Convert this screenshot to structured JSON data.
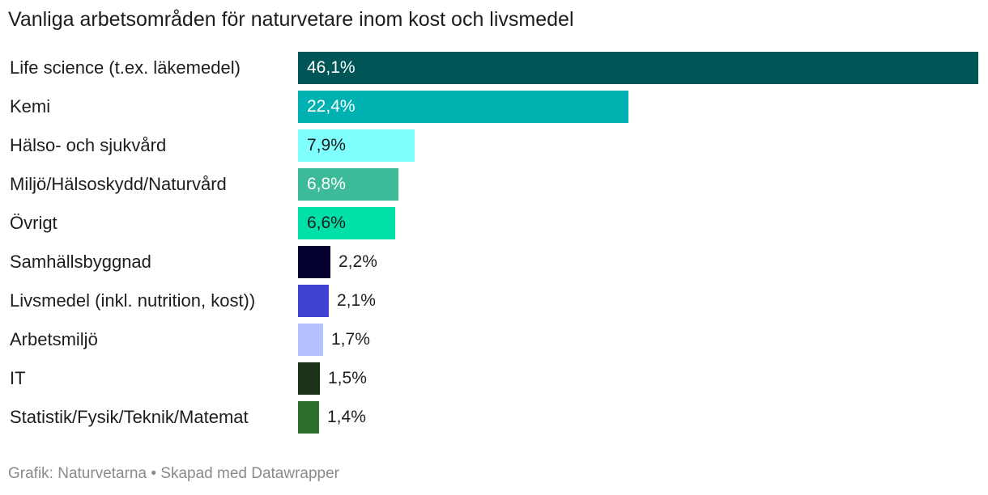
{
  "chart_data": {
    "type": "bar",
    "orientation": "horizontal",
    "title": "Vanliga arbetsområden för naturvetare inom kost och livsmedel",
    "categories": [
      "Life science (t.ex. läkemedel)",
      "Kemi",
      "Hälso- och sjukvård",
      "Miljö/Hälsoskydd/Naturvård",
      "Övrigt",
      "Samhällsbyggnad",
      "Livsmedel (inkl. nutrition, kost))",
      "Arbetsmiljö",
      "IT",
      "Statistik/Fysik/Teknik/Matemat"
    ],
    "values": [
      46.1,
      22.4,
      7.9,
      6.8,
      6.6,
      2.2,
      2.1,
      1.7,
      1.5,
      1.4
    ],
    "value_labels": [
      "46,1%",
      "22,4%",
      "7,9%",
      "6,8%",
      "6,6%",
      "2,2%",
      "2,1%",
      "1,7%",
      "1,5%",
      "1,4%"
    ],
    "colors": [
      "#005656",
      "#00b1b1",
      "#80ffff",
      "#3dbb99",
      "#00e0a8",
      "#04002e",
      "#3f43d0",
      "#b6c2ff",
      "#1b3219",
      "#2d6e2b"
    ],
    "label_colors": [
      "#ffffff",
      "#ffffff",
      "#1d1d1d",
      "#ffffff",
      "#1d1d1d",
      "#1d1d1d",
      "#1d1d1d",
      "#1d1d1d",
      "#1d1d1d",
      "#1d1d1d"
    ],
    "xlim": [
      0,
      46.1
    ],
    "xlabel": "",
    "ylabel": ""
  },
  "footer": {
    "text": "Grafik: Naturvetarna • Skapad med Datawrapper"
  }
}
